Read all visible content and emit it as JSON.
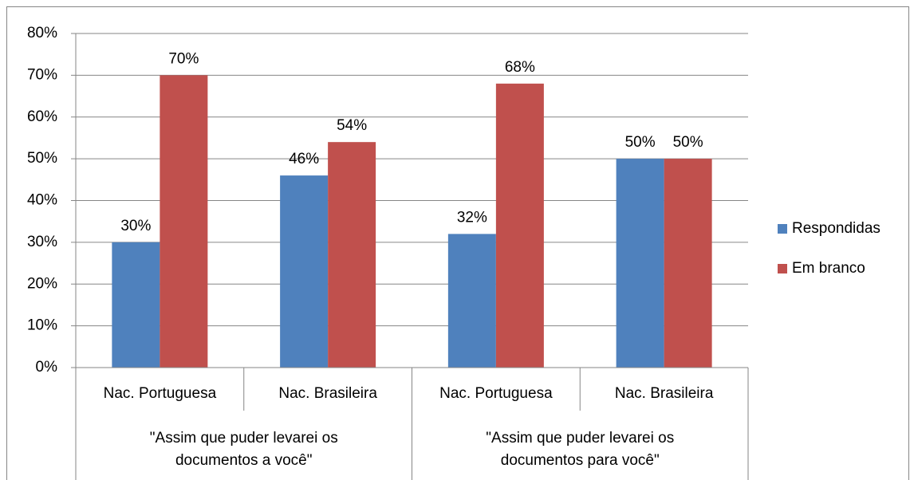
{
  "chart_data": {
    "type": "bar",
    "categories": [
      "Nac. Portuguesa",
      "Nac. Brasileira",
      "Nac. Portuguesa",
      "Nac. Brasileira"
    ],
    "group_labels": [
      "\"Assim que puder levarei os documentos a você\"",
      "\"Assim que puder levarei os documentos para você\""
    ],
    "series": [
      {
        "name": "Respondidas",
        "color": "#4f81bd",
        "values": [
          30,
          46,
          32,
          50
        ],
        "value_labels": [
          "30%",
          "46%",
          "32%",
          "50%"
        ]
      },
      {
        "name": "Em branco",
        "color": "#c0504d",
        "values": [
          70,
          54,
          68,
          50
        ],
        "value_labels": [
          "70%",
          "54%",
          "68%",
          "50%"
        ]
      }
    ],
    "ylim": [
      0,
      80
    ],
    "yticks": [
      {
        "value": 0,
        "label": "0%"
      },
      {
        "value": 10,
        "label": "10%"
      },
      {
        "value": 20,
        "label": "20%"
      },
      {
        "value": 30,
        "label": "30%"
      },
      {
        "value": 40,
        "label": "40%"
      },
      {
        "value": 50,
        "label": "50%"
      },
      {
        "value": 60,
        "label": "60%"
      },
      {
        "value": 70,
        "label": "70%"
      },
      {
        "value": 80,
        "label": "80%"
      }
    ],
    "grid": true,
    "legend": "right"
  }
}
